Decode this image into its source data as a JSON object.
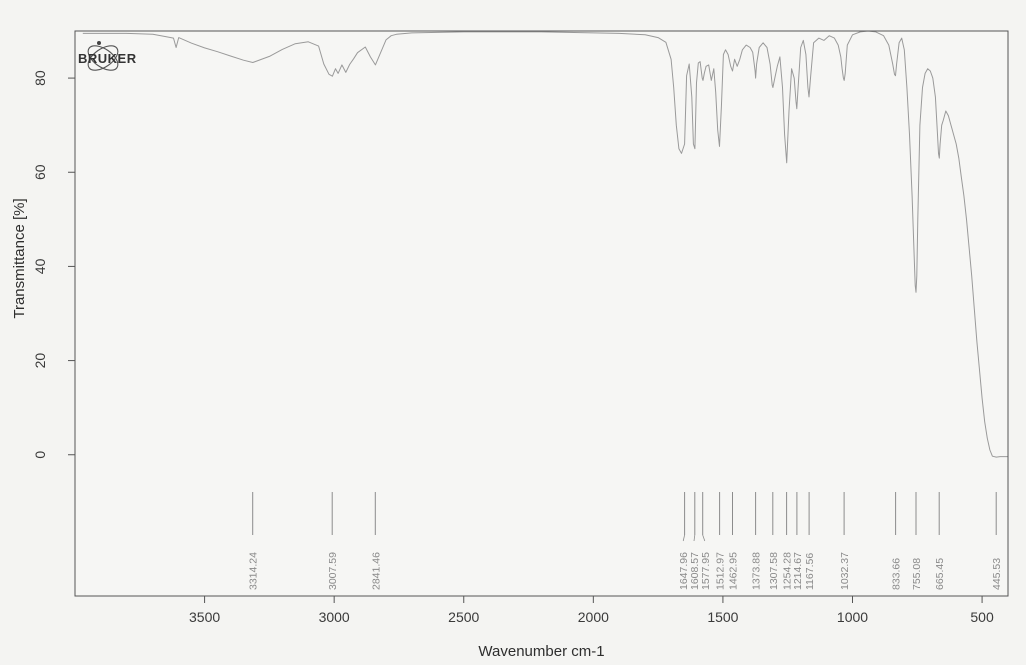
{
  "chart_data": {
    "type": "line",
    "title": "",
    "xlabel": "Wavenumber cm-1",
    "ylabel": "Transmittance [%]",
    "xlim": [
      4000,
      400
    ],
    "ylim": [
      -30,
      90
    ],
    "x_reversed": true,
    "grid": false,
    "legend": "none",
    "x_ticks": [
      3500,
      3000,
      2500,
      2000,
      1500,
      1000,
      500
    ],
    "y_ticks": [
      0,
      20,
      40,
      60,
      80
    ],
    "logo": "BRUKER",
    "colors": {
      "line": "#9a9a9a",
      "frame": "#555555",
      "peak_marker": "#8c8c8c",
      "background": "#f4f4f2"
    },
    "peaks": [
      {
        "label": "3314.24",
        "x": 3314.24
      },
      {
        "label": "3007.59",
        "x": 3007.59
      },
      {
        "label": "2841.46",
        "x": 2841.46
      },
      {
        "label": "1647.96",
        "x": 1647.96
      },
      {
        "label": "1608.57",
        "x": 1608.57
      },
      {
        "label": "1577.95",
        "x": 1577.95
      },
      {
        "label": "1512.97",
        "x": 1512.97
      },
      {
        "label": "1462.95",
        "x": 1462.95
      },
      {
        "label": "1373.88",
        "x": 1373.88
      },
      {
        "label": "1307.58",
        "x": 1307.58
      },
      {
        "label": "1254.28",
        "x": 1254.28
      },
      {
        "label": "1214.67",
        "x": 1214.67
      },
      {
        "label": "1167.56",
        "x": 1167.56
      },
      {
        "label": "1032.37",
        "x": 1032.37
      },
      {
        "label": "833.66",
        "x": 833.66
      },
      {
        "label": "755.08",
        "x": 755.08
      },
      {
        "label": "665.45",
        "x": 665.45
      },
      {
        "label": "445.53",
        "x": 445.53
      }
    ],
    "series": [
      {
        "x": [
          3970,
          3800,
          3700,
          3650,
          3620,
          3610,
          3600,
          3550,
          3500,
          3450,
          3400,
          3350,
          3314,
          3250,
          3200,
          3150,
          3100,
          3060,
          3040,
          3020,
          3007,
          2995,
          2985,
          2970,
          2955,
          2940,
          2925,
          2910,
          2880,
          2860,
          2841,
          2820,
          2800,
          2780,
          2760,
          2700,
          2600,
          2500,
          2400,
          2300,
          2200,
          2100,
          2000,
          1900,
          1800,
          1750,
          1720,
          1700,
          1690,
          1680,
          1670,
          1660,
          1648,
          1640,
          1630,
          1620,
          1614,
          1608,
          1602,
          1595,
          1588,
          1580,
          1577,
          1572,
          1565,
          1555,
          1545,
          1535,
          1528,
          1520,
          1513,
          1506,
          1498,
          1490,
          1480,
          1470,
          1463,
          1455,
          1445,
          1435,
          1425,
          1410,
          1395,
          1385,
          1376,
          1374,
          1370,
          1360,
          1345,
          1330,
          1318,
          1310,
          1307,
          1300,
          1290,
          1280,
          1270,
          1262,
          1254,
          1245,
          1235,
          1225,
          1218,
          1215,
          1210,
          1200,
          1190,
          1180,
          1172,
          1168,
          1162,
          1150,
          1130,
          1110,
          1090,
          1070,
          1055,
          1045,
          1040,
          1035,
          1032,
          1028,
          1020,
          1000,
          970,
          940,
          910,
          880,
          860,
          845,
          838,
          834,
          830,
          820,
          810,
          800,
          790,
          780,
          770,
          762,
          758,
          755,
          752,
          748,
          740,
          730,
          720,
          710,
          700,
          690,
          680,
          672,
          668,
          665,
          662,
          656,
          650,
          640,
          630,
          620,
          610,
          600,
          590,
          580,
          570,
          560,
          550,
          540,
          530,
          520,
          510,
          500,
          490,
          480,
          470,
          460,
          445,
          430,
          400
        ],
        "y": [
          89.5,
          89.5,
          89.3,
          88.8,
          88.5,
          86.5,
          88.6,
          87.4,
          86.4,
          85.6,
          84.7,
          83.8,
          83.3,
          84.6,
          86.1,
          87.3,
          87.7,
          86.8,
          83.0,
          80.8,
          80.4,
          82.0,
          81.0,
          82.8,
          81.2,
          82.9,
          84.1,
          85.4,
          86.6,
          84.5,
          82.8,
          85.5,
          88.1,
          89.0,
          89.3,
          89.6,
          89.7,
          89.8,
          89.8,
          89.8,
          89.8,
          89.7,
          89.6,
          89.5,
          89.2,
          88.6,
          87.6,
          84.0,
          78.0,
          70.0,
          65.0,
          64.0,
          66.0,
          80.5,
          83.0,
          76.0,
          66.0,
          65.0,
          79.0,
          83.2,
          83.5,
          80.0,
          79.5,
          81.0,
          82.5,
          82.8,
          79.5,
          82.0,
          77.0,
          69.0,
          65.5,
          74.0,
          85.0,
          86.0,
          85.0,
          82.5,
          81.5,
          84.0,
          82.5,
          84.0,
          86.0,
          87.0,
          86.5,
          85.5,
          81.5,
          80.0,
          83.0,
          86.5,
          87.5,
          86.5,
          83.0,
          78.5,
          78.0,
          80.0,
          82.5,
          84.5,
          78.0,
          68.0,
          62.0,
          73.0,
          82.0,
          80.0,
          75.0,
          73.5,
          78.0,
          86.5,
          88.0,
          85.0,
          78.0,
          76.0,
          80.0,
          87.5,
          88.5,
          88.0,
          89.0,
          88.5,
          87.0,
          84.5,
          82.0,
          80.0,
          79.5,
          81.0,
          87.0,
          89.2,
          89.8,
          90.0,
          89.8,
          89.0,
          87.0,
          83.0,
          80.8,
          80.5,
          83.0,
          87.5,
          88.5,
          86.0,
          78.0,
          68.0,
          55.0,
          42.0,
          36.0,
          34.5,
          38.0,
          50.0,
          70.0,
          78.0,
          81.0,
          82.0,
          81.5,
          80.0,
          76.0,
          68.0,
          64.0,
          63.0,
          66.0,
          70.0,
          71.0,
          73.0,
          72.0,
          70.0,
          68.0,
          66.0,
          63.0,
          59.0,
          55.0,
          50.0,
          44.0,
          38.0,
          31.0,
          24.0,
          18.0,
          12.0,
          7.0,
          3.5,
          1.0,
          -0.3,
          -0.5,
          -0.4,
          -0.4
        ]
      }
    ]
  }
}
